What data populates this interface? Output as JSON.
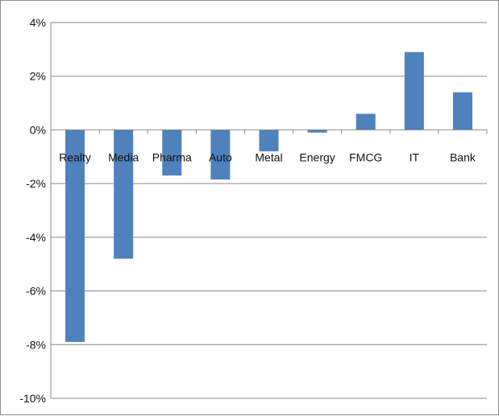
{
  "chart_data": {
    "type": "bar",
    "title": "",
    "xlabel": "",
    "ylabel": "",
    "categories": [
      "Realty",
      "Media",
      "Pharma",
      "Auto",
      "Metal",
      "Energy",
      "FMCG",
      "IT",
      "Bank"
    ],
    "values": [
      -7.9,
      -4.8,
      -1.7,
      -1.85,
      -0.8,
      -0.1,
      0.6,
      2.9,
      1.4
    ],
    "ylim": [
      -10,
      4
    ],
    "y_ticks": [
      4,
      2,
      0,
      -2,
      -4,
      -6,
      -8,
      -10
    ],
    "y_tick_labels": [
      "4%",
      "2%",
      "0%",
      "-2%",
      "-4%",
      "-6%",
      "-8%",
      "-10%"
    ],
    "grid": true,
    "legend": "none",
    "bar_color": "#4f81bd",
    "category_label_position": "below-zero-line"
  }
}
